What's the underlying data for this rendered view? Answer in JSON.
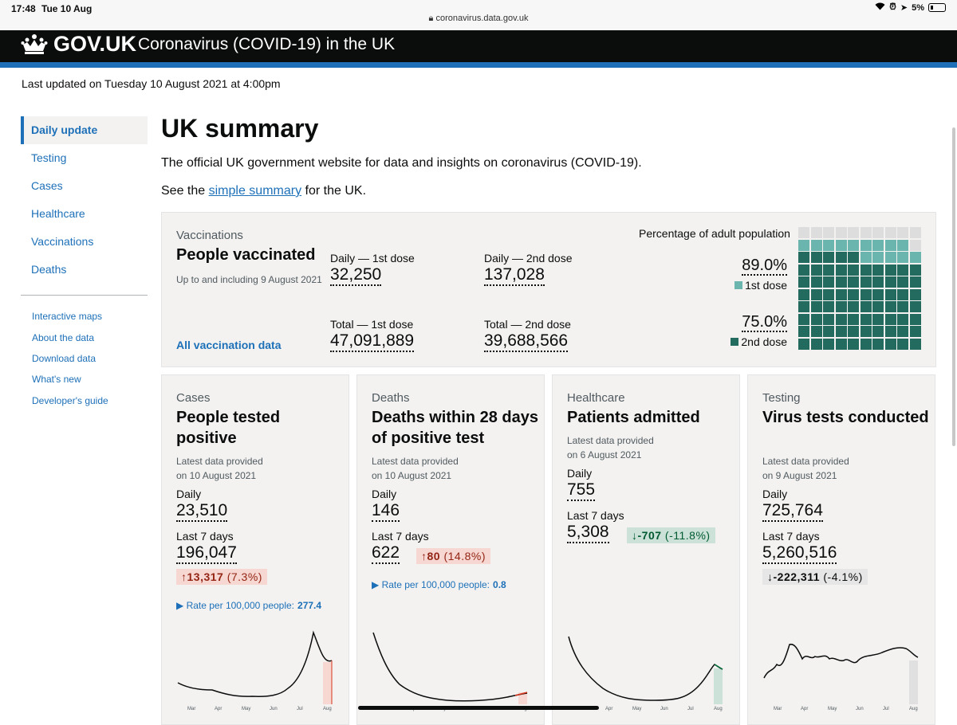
{
  "status_bar": {
    "time": "17:48",
    "date": "Tue 10 Aug",
    "url": "coronavirus.data.gov.uk",
    "battery": "5%"
  },
  "header": {
    "brand": "GOV.UK",
    "service": "Coronavirus (COVID-19) in the UK"
  },
  "last_updated": "Last updated on Tuesday 10 August 2021 at 4:00pm",
  "sidebar": {
    "items": [
      {
        "label": "Daily update",
        "active": true
      },
      {
        "label": "Testing",
        "active": false
      },
      {
        "label": "Cases",
        "active": false
      },
      {
        "label": "Healthcare",
        "active": false
      },
      {
        "label": "Vaccinations",
        "active": false
      },
      {
        "label": "Deaths",
        "active": false
      }
    ],
    "secondary": [
      {
        "label": "Interactive maps"
      },
      {
        "label": "About the data"
      },
      {
        "label": "Download data"
      },
      {
        "label": "What's new"
      },
      {
        "label": "Developer's guide"
      }
    ]
  },
  "main": {
    "title": "UK summary",
    "intro": "The official UK government website for data and insights on coronavirus (COVID-19).",
    "see_prefix": "See the",
    "see_link": "simple summary",
    "see_suffix": "for the UK."
  },
  "vaccinations": {
    "caption": "Vaccinations",
    "heading": "People vaccinated",
    "note": "Up to and including 9 August 2021",
    "link": "All vaccination data",
    "daily_first_label": "Daily — 1st dose",
    "daily_first_value": "32,250",
    "daily_second_label": "Daily — 2nd dose",
    "daily_second_value": "137,028",
    "total_first_label": "Total — 1st dose",
    "total_first_value": "47,091,889",
    "total_second_label": "Total — 2nd dose",
    "total_second_value": "39,688,566",
    "pct_title": "Percentage of adult population",
    "first_pct": "89.0%",
    "first_label": "1st dose",
    "second_pct": "75.0%",
    "second_label": "2nd dose",
    "first_fraction": 0.89,
    "second_fraction": 0.75,
    "colors": {
      "first": "#6ab5ad",
      "second": "#246b5f",
      "empty": "#dddddd"
    }
  },
  "cards": [
    {
      "caption": "Cases",
      "heading": "People tested positive",
      "provided_line1": "Latest data provided",
      "provided_line2": "on 10 August 2021",
      "daily_label": "Daily",
      "daily_value": "23,510",
      "week_label": "Last 7 days",
      "week_value": "196,047",
      "change_value": "13,317",
      "change_pct": "(7.3%)",
      "change_arrow": "↑",
      "rate_label": "Rate per 100,000 people:",
      "rate_value": "277.4",
      "months": [
        "Mar",
        "Apr",
        "May",
        "Jun",
        "Jul",
        "Aug"
      ]
    },
    {
      "caption": "Deaths",
      "heading": "Deaths within 28 days of positive test",
      "provided_line1": "Latest data provided",
      "provided_line2": "on 10 August 2021",
      "daily_label": "Daily",
      "daily_value": "146",
      "week_label": "Last 7 days",
      "week_value": "622",
      "change_value": "80",
      "change_pct": "(14.8%)",
      "change_arrow": "↑",
      "rate_label": "Rate per 100,000 people:",
      "rate_value": "0.8",
      "months": [
        "Mar",
        "Apr",
        "May",
        "Jun",
        "Jul",
        "Aug"
      ]
    },
    {
      "caption": "Healthcare",
      "heading": "Patients admitted",
      "provided_line1": "Latest data provided",
      "provided_line2": "on 6 August 2021",
      "daily_label": "Daily",
      "daily_value": "755",
      "week_label": "Last 7 days",
      "week_value": "5,308",
      "change_value": "-707",
      "change_pct": "(-11.8%)",
      "change_arrow": "↓",
      "months": [
        "Mar",
        "Apr",
        "May",
        "Jun",
        "Jul",
        "Aug"
      ]
    },
    {
      "caption": "Testing",
      "heading": "Virus tests conducted",
      "provided_line1": "Latest data provided",
      "provided_line2": "on 9 August 2021",
      "daily_label": "Daily",
      "daily_value": "725,764",
      "week_label": "Last 7 days",
      "week_value": "5,260,516",
      "change_value": "-222,311",
      "change_pct": "(-4.1%)",
      "change_arrow": "↓",
      "months": [
        "Mar",
        "Apr",
        "May",
        "Jun",
        "Jul",
        "Aug"
      ]
    }
  ]
}
